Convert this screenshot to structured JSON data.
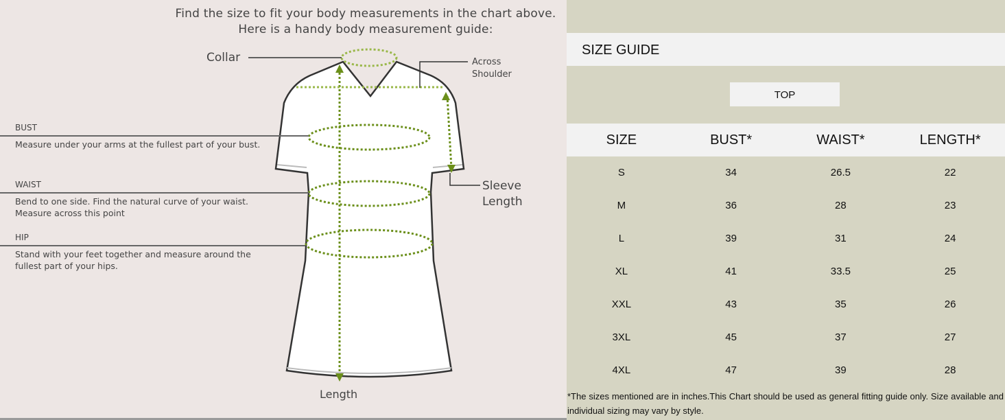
{
  "guide": {
    "intro_line1": "Find the size to fit your body measurements in the chart above.",
    "intro_line2": "Here is a handy body measurement guide:",
    "collar": "Collar",
    "across_shoulder_1": "Across",
    "across_shoulder_2": "Shoulder",
    "sleeve_length_1": "Sleeve",
    "sleeve_length_2": "Length",
    "length": "Length",
    "bust_title": "BUST",
    "bust_text": "Measure under your arms at the fullest part of your bust.",
    "waist_title": "WAIST",
    "waist_text_1": "Bend to one side. Find the natural curve of your waist.",
    "waist_text_2": "Measure across this point",
    "hip_title": "HIP",
    "hip_text_1": "Stand with your feet together and measure around the",
    "hip_text_2": "fullest part of your hips."
  },
  "size_guide": {
    "title": "SIZE GUIDE",
    "category": "TOP",
    "columns": [
      "SIZE",
      "BUST*",
      "WAIST*",
      "LENGTH*"
    ],
    "rows": [
      [
        "S",
        "34",
        "26.5",
        "22"
      ],
      [
        "M",
        "36",
        "28",
        "23"
      ],
      [
        "L",
        "39",
        "31",
        "24"
      ],
      [
        "XL",
        "41",
        "33.5",
        "25"
      ],
      [
        "XXL",
        "43",
        "35",
        "26"
      ],
      [
        "3XL",
        "45",
        "37",
        "27"
      ],
      [
        "4XL",
        "47",
        "39",
        "28"
      ]
    ],
    "footnote": "*The sizes mentioned are in inches.This Chart should be used as general fitting guide only. Size available and individual sizing may vary by style."
  },
  "colors": {
    "guide_bg": "#ede6e4",
    "table_bg": "#d6d5c3",
    "band": "#f2f2f2",
    "measure_dots": "#6b8f1a"
  }
}
